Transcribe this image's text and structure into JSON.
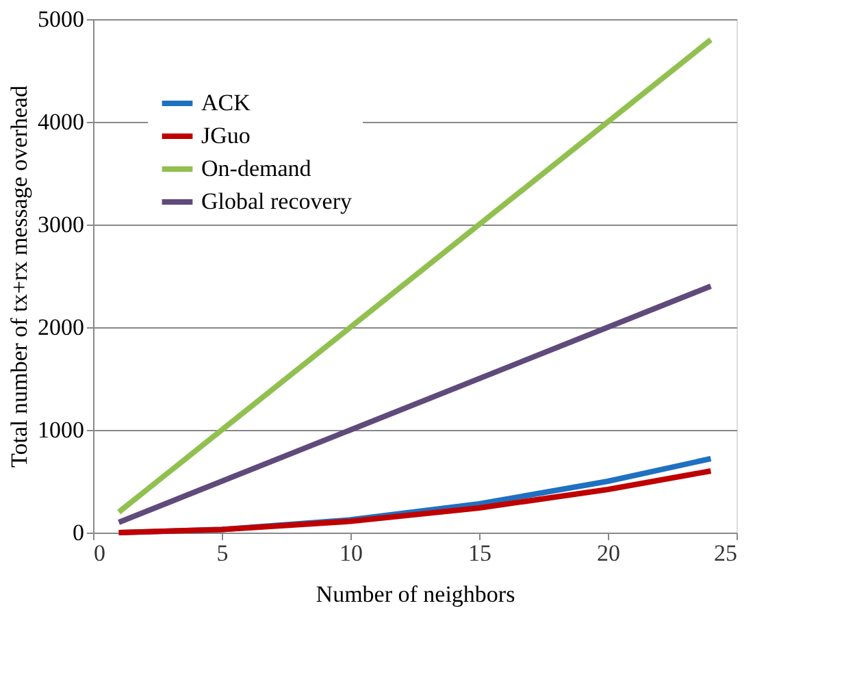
{
  "chart_data": {
    "type": "line",
    "xlabel": "Number of neighbors",
    "ylabel": "Total number of tx+rx message overhead",
    "xlim": [
      0,
      25
    ],
    "xticks": [
      0,
      5,
      10,
      15,
      20,
      25
    ],
    "ylim": [
      0,
      5000
    ],
    "yticks": [
      0,
      1000,
      2000,
      3000,
      4000,
      5000
    ],
    "grid": "y",
    "legend": "top left",
    "line_style": "solid",
    "marker": "none",
    "series": [
      {
        "name": "ACK",
        "color": "#1f70c1",
        "x": [
          1,
          5,
          10,
          15,
          20,
          24
        ],
        "values": [
          0,
          30,
          125,
          280,
          500,
          720
        ]
      },
      {
        "name": "JGuo",
        "color": "#c00000",
        "x": [
          1,
          5,
          10,
          15,
          20,
          24
        ],
        "values": [
          0,
          30,
          110,
          240,
          420,
          600
        ]
      },
      {
        "name": "On-demand",
        "color": "#92c050",
        "x": [
          1,
          24
        ],
        "values": [
          200,
          4800
        ]
      },
      {
        "name": "Global recovery",
        "color": "#604a7b",
        "x": [
          1,
          24
        ],
        "values": [
          100,
          2400
        ]
      }
    ]
  }
}
